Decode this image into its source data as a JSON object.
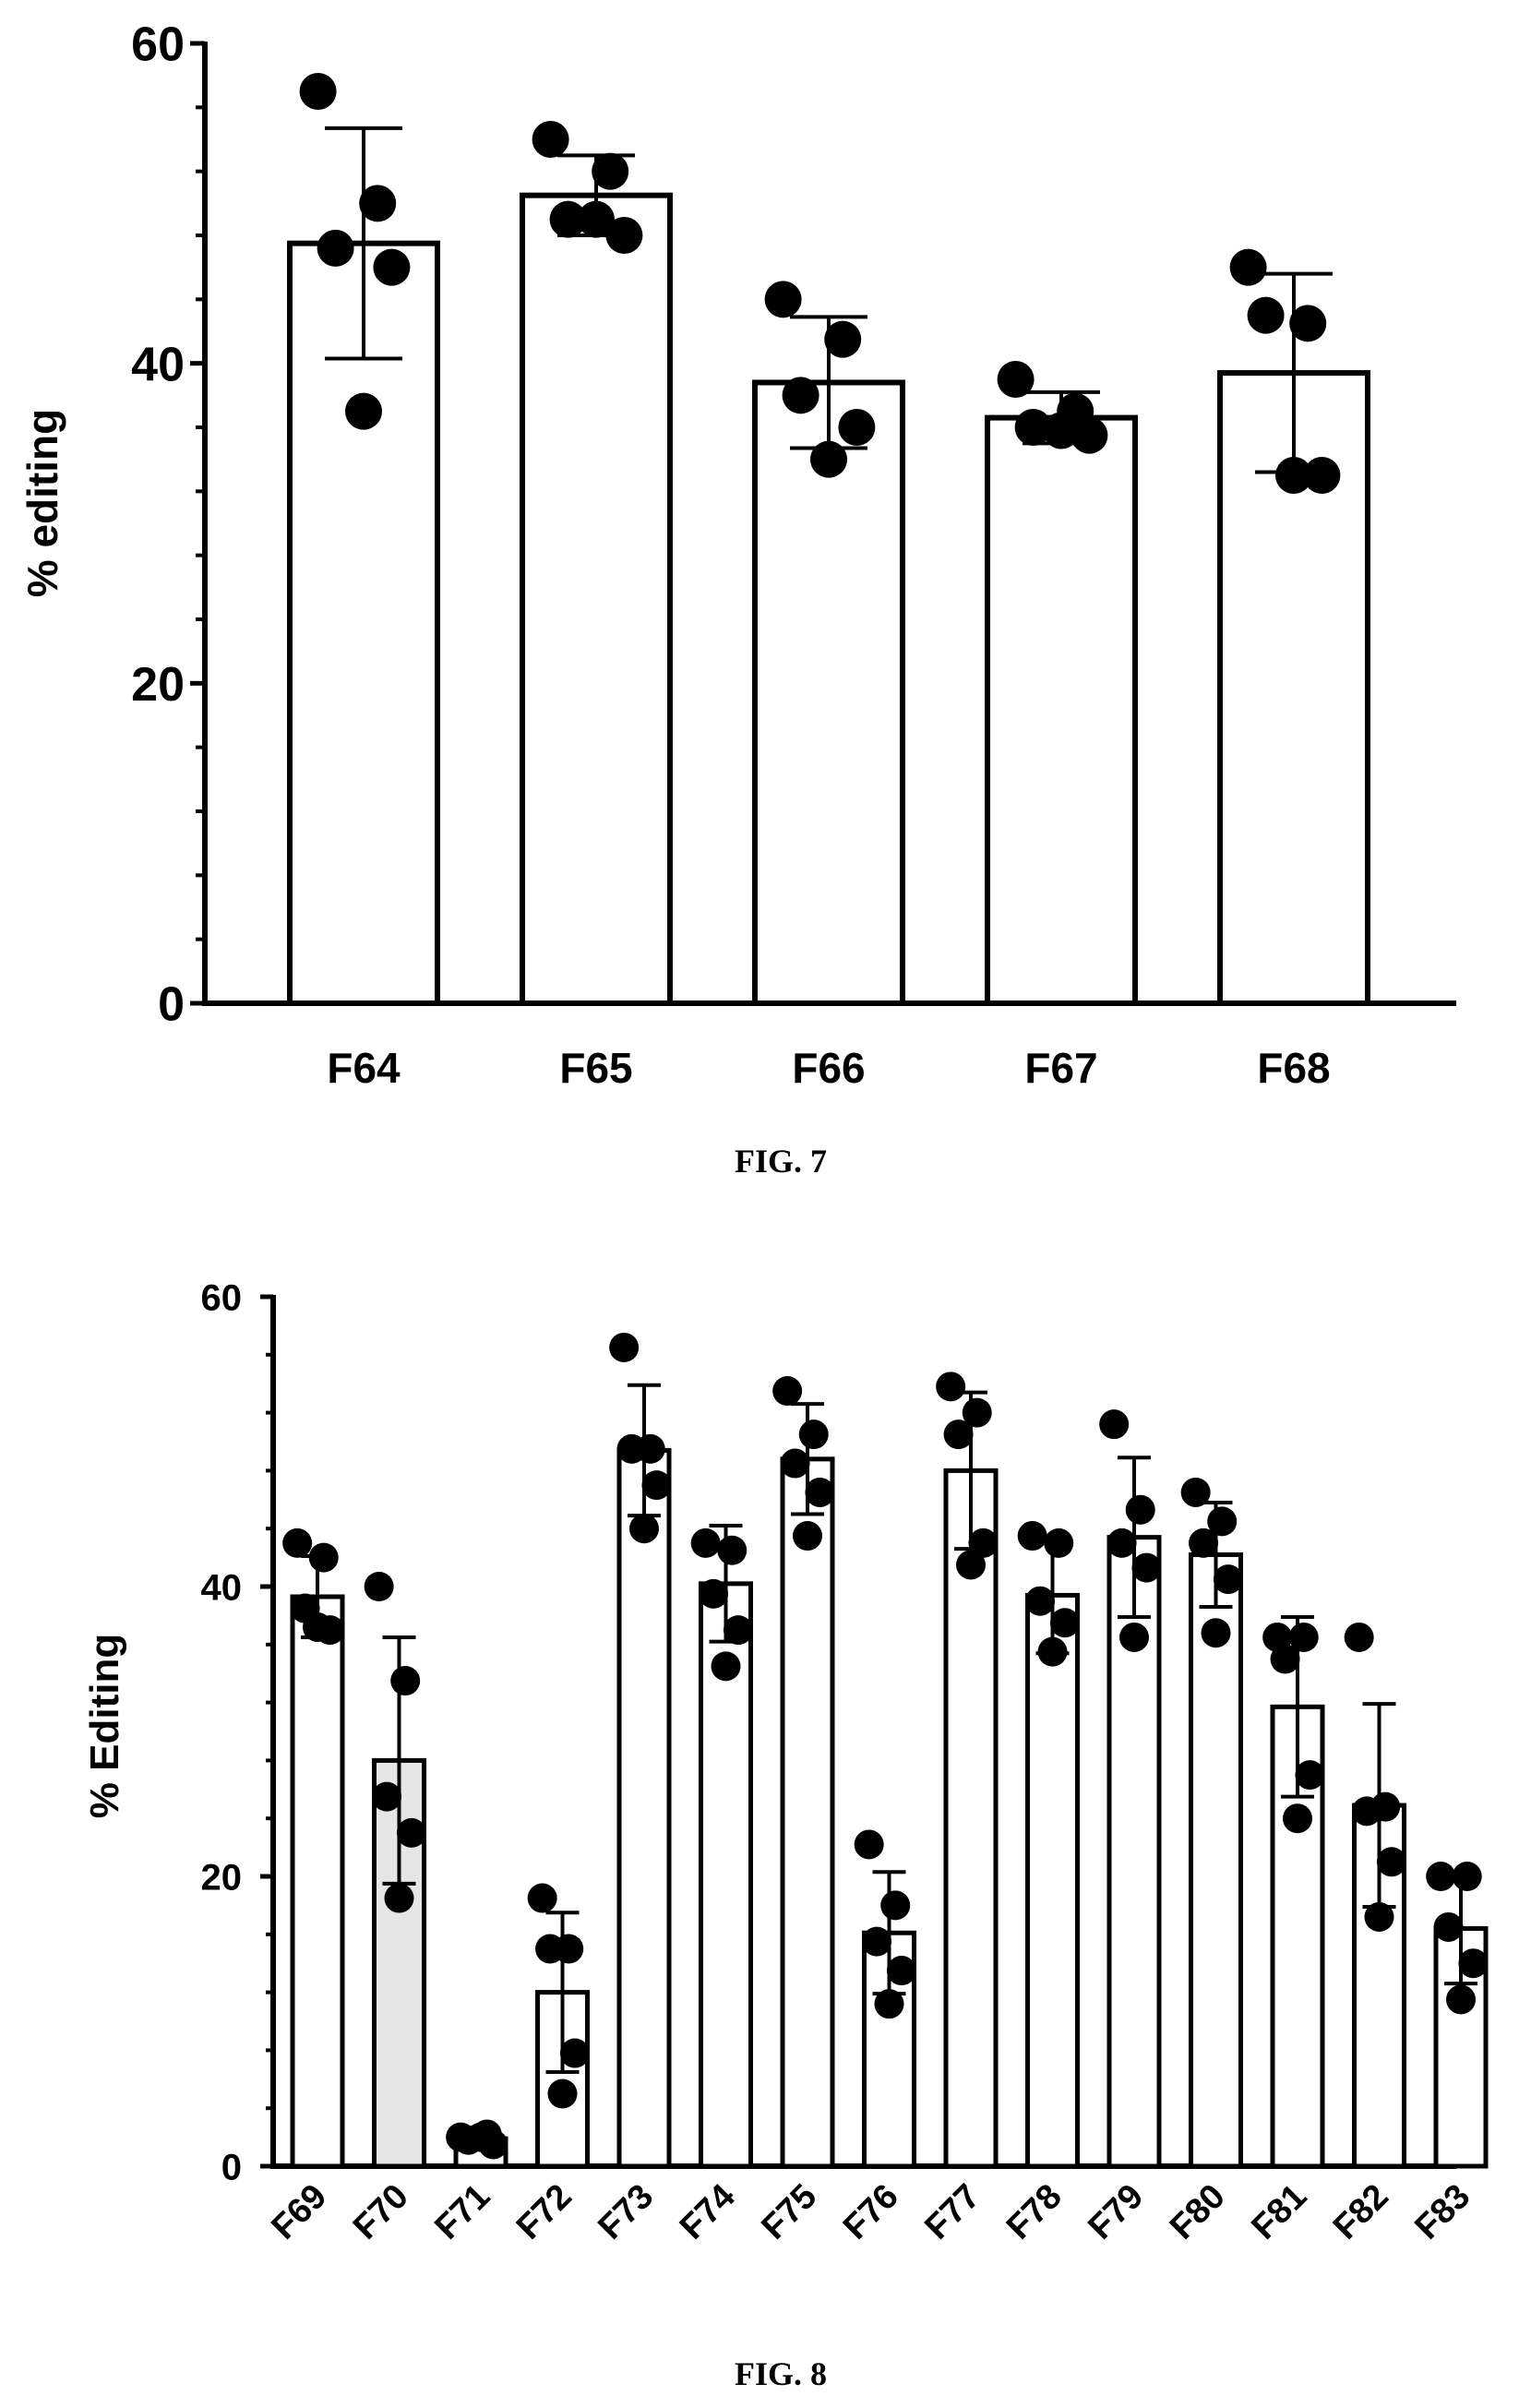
{
  "chart_data": [
    {
      "type": "bar",
      "title": "",
      "xlabel": "",
      "ylabel": "% editing",
      "ylim": [
        0,
        60
      ],
      "yticks": [
        "0",
        "20",
        "40",
        "60"
      ],
      "grid": false,
      "legend": "none",
      "bar_fill": "#ffffff",
      "categories": [
        "F64",
        "F65",
        "F66",
        "F67",
        "F68"
      ],
      "values": [
        47.5,
        50.5,
        38.8,
        36.6,
        39.4
      ],
      "error": [
        7.2,
        2.5,
        4.1,
        1.6,
        6.2
      ],
      "points": [
        [
          57.0,
          50.0,
          47.2,
          46.0,
          37.0
        ],
        [
          54.0,
          52.0,
          49.0,
          48.0,
          49.0
        ],
        [
          44.0,
          41.5,
          38.0,
          36.0,
          34.0
        ],
        [
          39.0,
          37.0,
          36.0,
          35.5,
          35.8
        ],
        [
          46.0,
          42.5,
          43.0,
          33.0,
          33.0
        ]
      ],
      "caption": "FIG. 7"
    },
    {
      "type": "bar",
      "title": "",
      "xlabel": "",
      "ylabel": "% Editing",
      "ylim": [
        0,
        60
      ],
      "yticks": [
        "0",
        "20",
        "40",
        "60"
      ],
      "grid": false,
      "legend": "none",
      "bar_fill": "#ffffff",
      "dotted_bar_fill": "#e6e6e6",
      "dotted_bars": [
        "F70"
      ],
      "categories": [
        "F69",
        "F70",
        "F71",
        "F72",
        "F73",
        "F74",
        "F75",
        "F76",
        "F77",
        "F78",
        "F79",
        "F80",
        "F81",
        "F82",
        "F83"
      ],
      "values": [
        39.3,
        28.0,
        1.9,
        12.0,
        49.4,
        40.2,
        48.8,
        16.1,
        48.0,
        39.4,
        43.4,
        42.2,
        31.7,
        24.9,
        16.4
      ],
      "error": [
        2.8,
        8.5,
        0.3,
        5.5,
        4.5,
        4.0,
        3.8,
        4.2,
        5.4,
        4.0,
        5.5,
        3.6,
        6.2,
        7.0,
        3.8
      ],
      "points": [
        [
          43.0,
          42.0,
          38.5,
          37.0,
          37.2
        ],
        [
          40.0,
          33.5,
          25.5,
          23.0,
          18.5
        ],
        [
          2.0,
          2.2,
          1.8,
          1.5,
          2.0
        ],
        [
          18.5,
          15.0,
          15.0,
          7.8,
          5.0
        ],
        [
          56.5,
          49.5,
          49.5,
          47.0,
          44.0
        ],
        [
          43.0,
          42.5,
          39.5,
          37.0,
          34.5
        ],
        [
          53.5,
          50.5,
          48.5,
          46.5,
          43.5
        ],
        [
          22.2,
          18.0,
          15.5,
          13.5,
          11.2
        ],
        [
          53.8,
          52.0,
          50.5,
          43.0,
          41.5
        ],
        [
          43.5,
          43.0,
          39.0,
          37.5,
          35.5
        ],
        [
          51.2,
          45.3,
          43.0,
          41.3,
          36.5
        ],
        [
          46.5,
          44.5,
          43.0,
          40.5,
          36.8
        ],
        [
          36.5,
          36.5,
          35.0,
          27.0,
          24.0
        ],
        [
          36.5,
          24.8,
          24.5,
          21.0,
          17.2
        ],
        [
          20.0,
          20.0,
          16.5,
          14.0,
          11.5
        ]
      ],
      "caption": "FIG. 8"
    }
  ]
}
